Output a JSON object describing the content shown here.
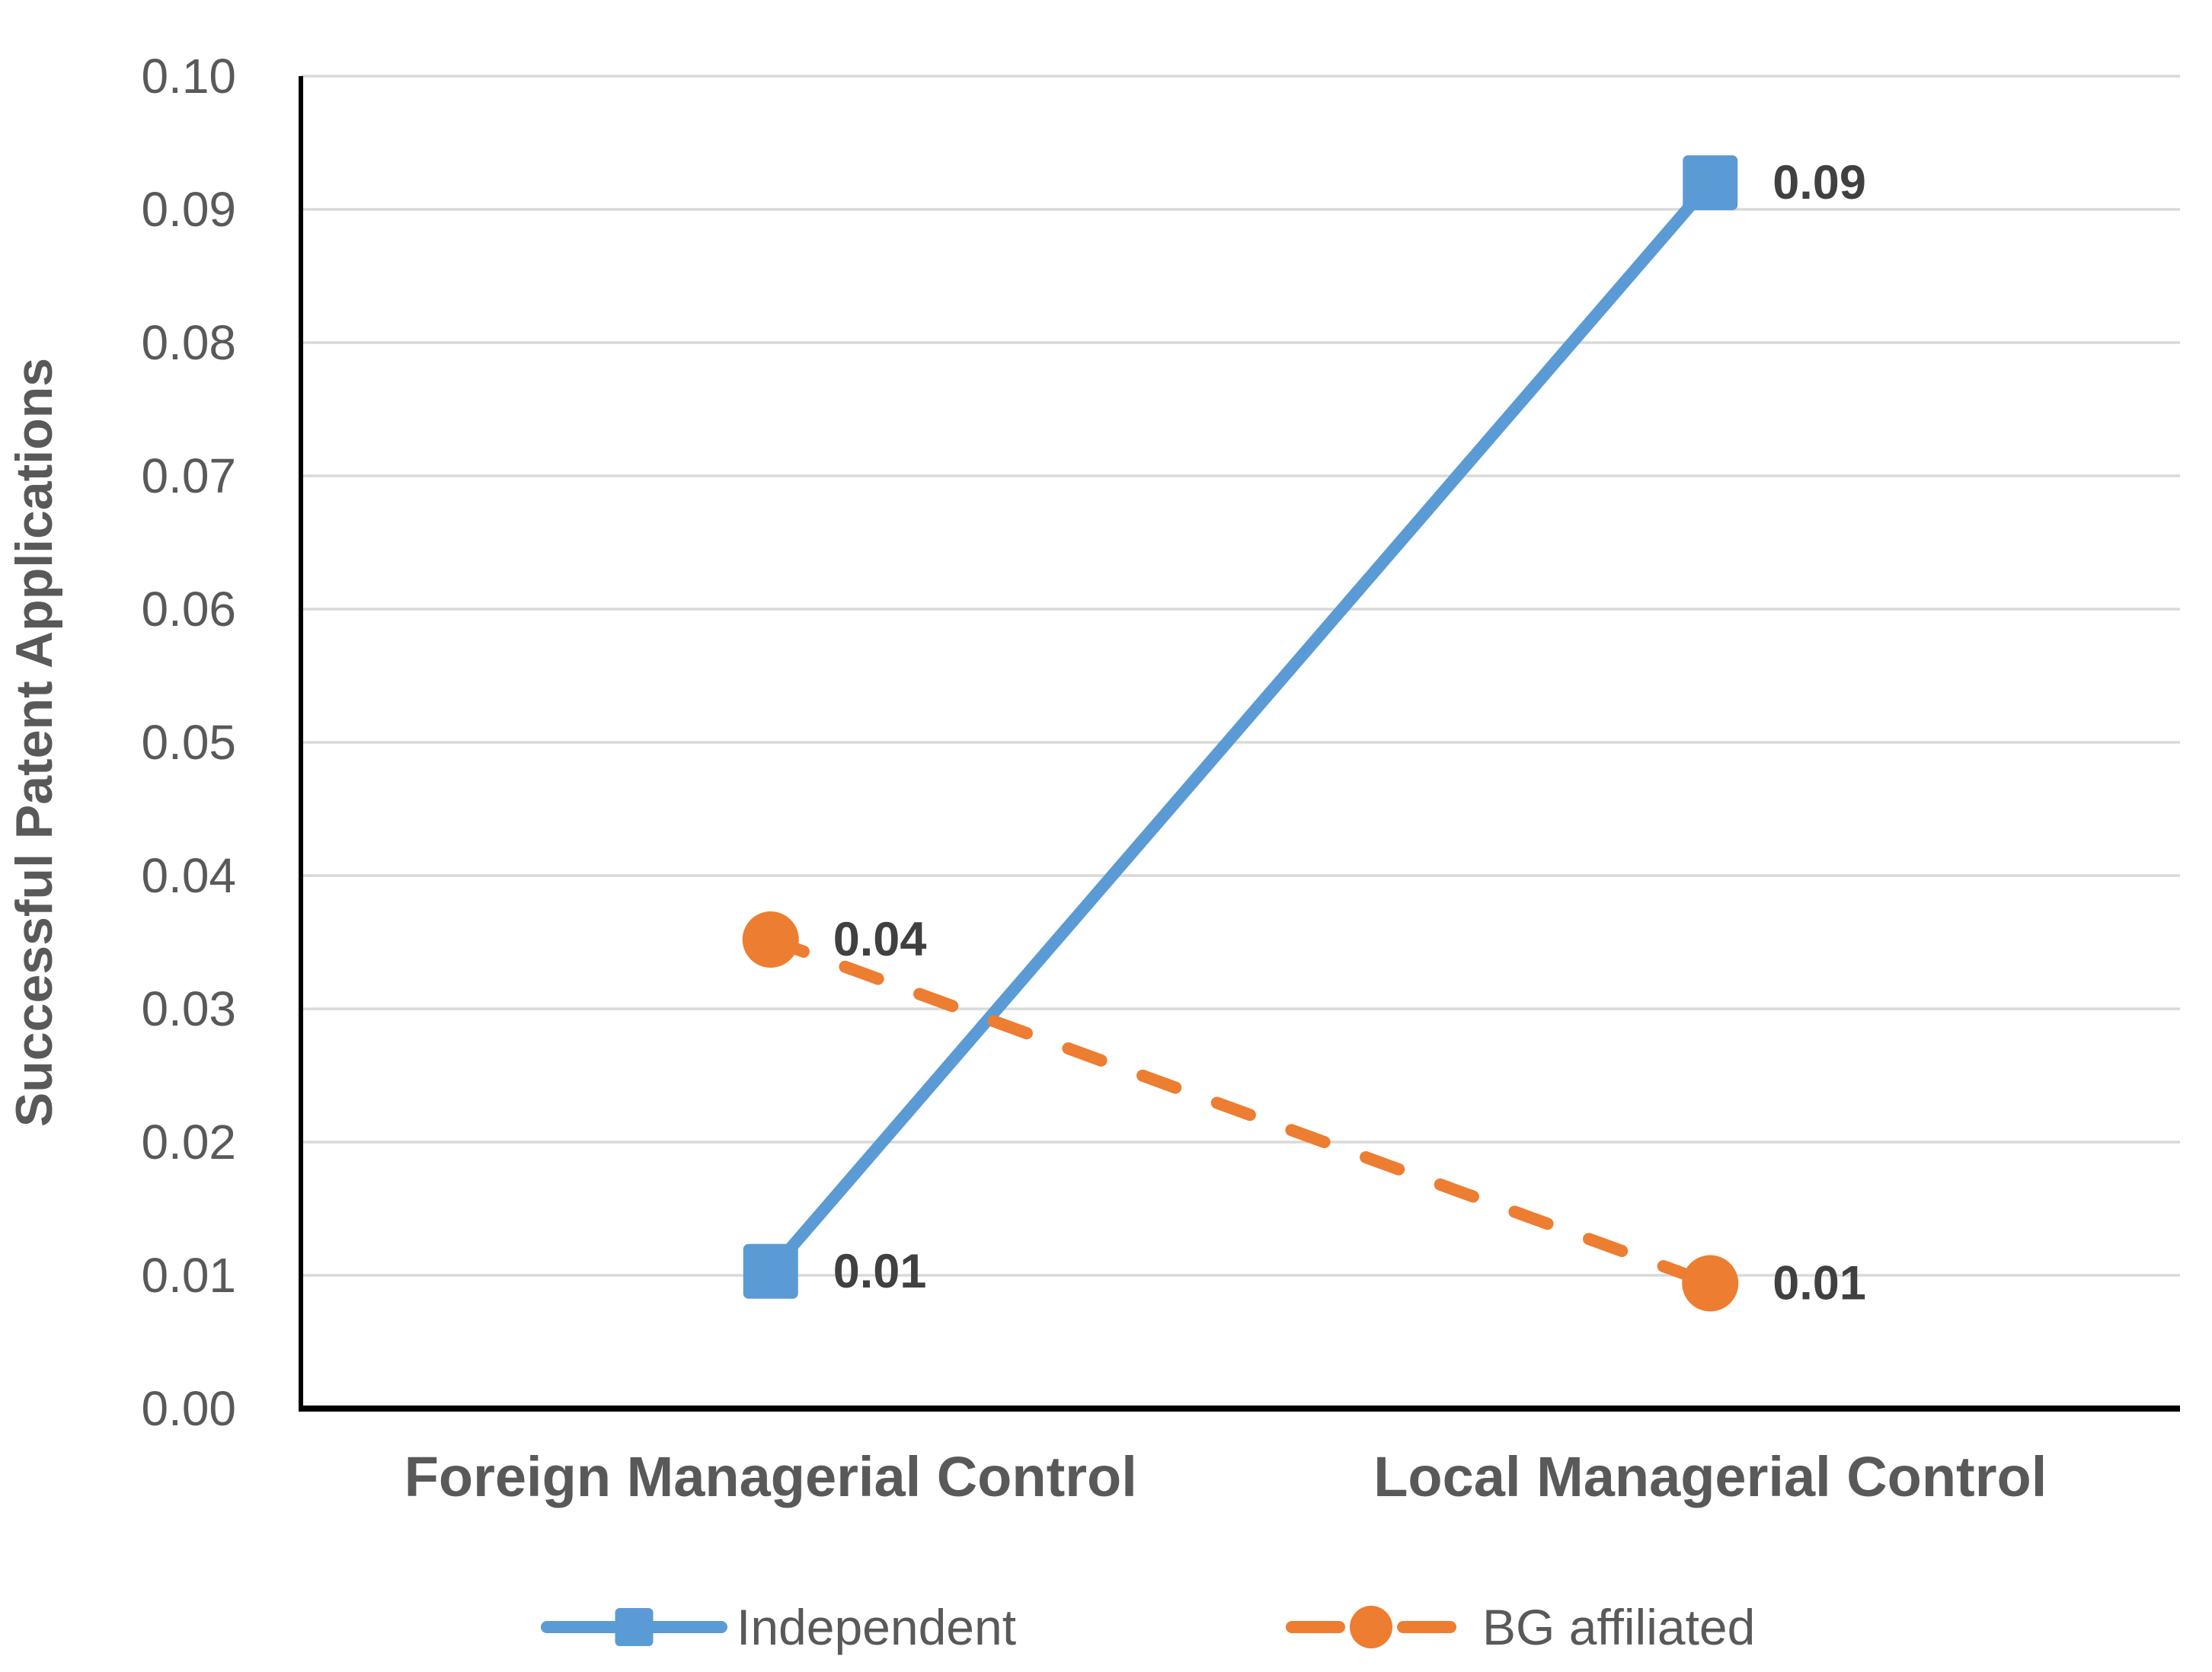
{
  "chart_data": {
    "type": "line",
    "title": "",
    "categories": [
      "Foreign Managerial Control",
      "Local Managerial Control"
    ],
    "series": [
      {
        "name": "Independent",
        "color": "#5B9BD5",
        "marker": "square",
        "line_style": "solid",
        "values": [
          0.0103,
          0.092
        ],
        "data_labels": [
          "0.01",
          "0.09"
        ]
      },
      {
        "name": "BG affiliated",
        "color": "#ED7D31",
        "marker": "circle",
        "line_style": "dashed",
        "values": [
          0.0352,
          0.0094
        ],
        "data_labels": [
          "0.04",
          "0.01"
        ]
      }
    ],
    "xlabel": "",
    "ylabel": "Successful Patent Applications",
    "ylim": [
      0,
      0.1
    ],
    "ytick_step": 0.01,
    "ytick_labels": [
      "0.00",
      "0.01",
      "0.02",
      "0.03",
      "0.04",
      "0.05",
      "0.06",
      "0.07",
      "0.08",
      "0.09",
      "0.10"
    ],
    "grid": "horizontal",
    "legend_position": "bottom"
  },
  "colors": {
    "gridline": "#D9D9D9",
    "axis_line": "#000000",
    "tick_label": "#595959",
    "category_label": "#595959",
    "data_label": "#404040",
    "legend_text": "#595959",
    "background": "#FFFFFF"
  }
}
